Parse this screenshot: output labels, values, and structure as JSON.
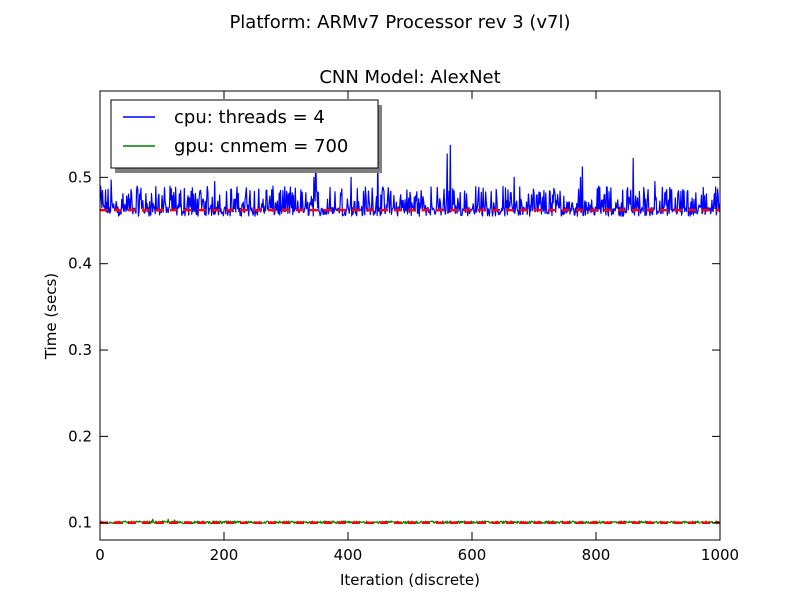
{
  "figure": {
    "suptitle": "Platform: ARMv7 Processor rev 3 (v7l)"
  },
  "chart_data": {
    "type": "line",
    "title": "CNN Model: AlexNet",
    "xlabel": "Iteration (discrete)",
    "ylabel": "Time (secs)",
    "xlim": [
      0,
      1000
    ],
    "ylim": [
      0.08,
      0.6
    ],
    "xticks": [
      "0",
      "200",
      "400",
      "600",
      "800",
      "1000"
    ],
    "yticks": [
      "0.1",
      "0.2",
      "0.3",
      "0.4",
      "0.5"
    ],
    "grid": false,
    "legend_position": "top-left",
    "series": [
      {
        "name": "cpu: threads = 4",
        "color": "#0000ff",
        "baseline": 0.46,
        "typical_range": [
          0.455,
          0.49
        ],
        "spikes": [
          [
            18,
            0.497
          ],
          [
            185,
            0.495
          ],
          [
            345,
            0.5
          ],
          [
            348,
            0.534
          ],
          [
            405,
            0.5
          ],
          [
            448,
            0.527
          ],
          [
            560,
            0.527
          ],
          [
            565,
            0.537
          ],
          [
            668,
            0.5
          ],
          [
            775,
            0.5
          ],
          [
            778,
            0.512
          ],
          [
            860,
            0.522
          ],
          [
            895,
            0.495
          ]
        ]
      },
      {
        "name": "gpu: cnmem = 700",
        "color": "#008000",
        "baseline": 0.1,
        "typical_range": [
          0.099,
          0.102
        ],
        "spikes": [
          [
            85,
            0.104
          ],
          [
            110,
            0.104
          ],
          [
            120,
            0.103
          ],
          [
            430,
            0.102
          ],
          [
            620,
            0.102
          ]
        ]
      }
    ],
    "mean_lines": [
      {
        "series": "cpu: threads = 4",
        "value": 0.462,
        "color": "#ff0000",
        "style": "dashed"
      },
      {
        "series": "gpu: cnmem = 700",
        "value": 0.1,
        "color": "#ff0000",
        "style": "dashed"
      }
    ]
  }
}
